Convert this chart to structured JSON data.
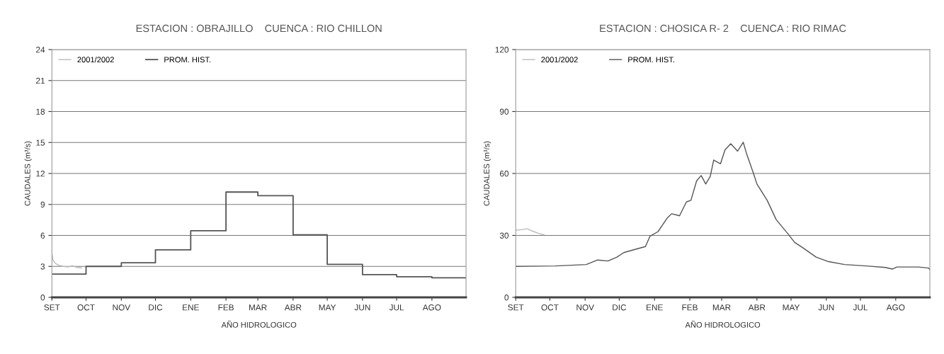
{
  "chart_data": [
    {
      "type": "step",
      "title": "ESTACION : OBRAJILLO    CUENCA : RIO CHILLON",
      "xlabel": "AÑO HIDROLOGICO",
      "ylabel": "CAUDALES (m³/s)",
      "xlim": [
        "2001-09-01",
        "2002-08-31"
      ],
      "xticks": [
        {
          "value": "2001-09-01",
          "label": "SET"
        },
        {
          "value": "2001-10-01",
          "label": "OCT"
        },
        {
          "value": "2001-11-01",
          "label": "NOV"
        },
        {
          "value": "2001-12-01",
          "label": "DIC"
        },
        {
          "value": "2002-01-01",
          "label": "ENE"
        },
        {
          "value": "2002-02-01",
          "label": "FEB"
        },
        {
          "value": "2002-03-01",
          "label": "MAR"
        },
        {
          "value": "2002-04-01",
          "label": "ABR"
        },
        {
          "value": "2002-05-01",
          "label": "MAY"
        },
        {
          "value": "2002-06-01",
          "label": "JUN"
        },
        {
          "value": "2002-07-01",
          "label": "JUL"
        },
        {
          "value": "2002-08-01",
          "label": "AGO"
        }
      ],
      "ylim": [
        0,
        24
      ],
      "yticks": [
        0,
        3,
        6,
        9,
        12,
        15,
        18,
        21,
        24
      ],
      "grid": "y",
      "legend": "top left",
      "series": [
        {
          "name": "2001/2002",
          "type": "line",
          "color": "#bbbbbb",
          "x": [
            "2001-09-01",
            "2001-09-02",
            "2001-09-04",
            "2001-09-07",
            "2001-09-11",
            "2001-09-15",
            "2001-09-19",
            "2001-09-23",
            "2001-09-27"
          ],
          "values": [
            4.3,
            3.6,
            3.3,
            3.1,
            3.0,
            2.95,
            3.05,
            2.9,
            2.85
          ]
        },
        {
          "name": "PROM. HIST.",
          "type": "step",
          "color": "#555555",
          "x": [
            "2001-09-01",
            "2001-10-01",
            "2001-11-01",
            "2001-12-01",
            "2002-01-01",
            "2002-02-01",
            "2002-03-01",
            "2002-04-01",
            "2002-05-01",
            "2002-06-01",
            "2002-07-01",
            "2002-08-01",
            "2002-08-31"
          ],
          "values": [
            2.25,
            3.0,
            3.35,
            4.6,
            6.45,
            10.2,
            9.85,
            6.05,
            3.2,
            2.2,
            2.0,
            1.9,
            1.9
          ]
        }
      ]
    },
    {
      "type": "line",
      "title": "ESTACION : CHOSICA R- 2    CUENCA : RIO RIMAC",
      "xlabel": "AÑO HIDROLOGICO",
      "ylabel": "CAUDALES (m³/s)",
      "xlim": [
        "2001-09-01",
        "2002-08-31"
      ],
      "xticks": [
        {
          "value": "2001-09-01",
          "label": "SET"
        },
        {
          "value": "2001-10-01",
          "label": "OCT"
        },
        {
          "value": "2001-11-01",
          "label": "NOV"
        },
        {
          "value": "2001-12-01",
          "label": "DIC"
        },
        {
          "value": "2002-01-01",
          "label": "ENE"
        },
        {
          "value": "2002-02-01",
          "label": "FEB"
        },
        {
          "value": "2002-03-01",
          "label": "MAR"
        },
        {
          "value": "2002-04-01",
          "label": "ABR"
        },
        {
          "value": "2002-05-01",
          "label": "MAY"
        },
        {
          "value": "2002-06-01",
          "label": "JUN"
        },
        {
          "value": "2002-07-01",
          "label": "JUL"
        },
        {
          "value": "2002-08-01",
          "label": "AGO"
        }
      ],
      "ylim": [
        0,
        120
      ],
      "yticks": [
        0,
        30,
        60,
        90,
        120
      ],
      "grid": "y",
      "legend": "top left",
      "series": [
        {
          "name": "2001/2002",
          "color": "#bbbbbb",
          "x": [
            "2001-09-01",
            "2001-09-06",
            "2001-09-11",
            "2001-09-17",
            "2001-09-22",
            "2001-09-26"
          ],
          "values": [
            32.5,
            32.8,
            33.2,
            31.8,
            30.8,
            30.3
          ]
        },
        {
          "name": "PROM. HIST.",
          "color": "#555555",
          "x": [
            "2001-09-01",
            "2001-10-06",
            "2001-11-02",
            "2001-11-12",
            "2001-11-21",
            "2001-11-29",
            "2001-12-05",
            "2001-12-16",
            "2001-12-24",
            "2001-12-28",
            "2002-01-04",
            "2002-01-12",
            "2002-01-16",
            "2002-01-23",
            "2002-01-29",
            "2002-02-02",
            "2002-02-07",
            "2002-02-11",
            "2002-02-15",
            "2002-02-19",
            "2002-02-22",
            "2002-02-28",
            "2002-03-04",
            "2002-03-09",
            "2002-03-15",
            "2002-03-20",
            "2002-03-23",
            "2002-03-29",
            "2002-04-01",
            "2002-04-10",
            "2002-04-18",
            "2002-04-29",
            "2002-05-04",
            "2002-05-12",
            "2002-05-23",
            "2002-06-03",
            "2002-06-17",
            "2002-07-06",
            "2002-07-23",
            "2002-07-29",
            "2002-08-02",
            "2002-08-21",
            "2002-08-30",
            "2002-08-31"
          ],
          "values": [
            15.0,
            15.2,
            15.9,
            18.1,
            17.6,
            19.5,
            21.7,
            23.4,
            24.6,
            29.6,
            31.8,
            38.3,
            40.5,
            39.5,
            46.2,
            47.0,
            56.4,
            59.0,
            54.9,
            58.6,
            66.5,
            64.7,
            71.5,
            74.4,
            70.8,
            75.1,
            69.4,
            60.0,
            54.9,
            47.0,
            37.6,
            30.3,
            26.7,
            23.8,
            19.5,
            17.3,
            15.9,
            15.2,
            14.5,
            13.7,
            14.7,
            14.7,
            14.2,
            13.4
          ]
        }
      ]
    }
  ]
}
